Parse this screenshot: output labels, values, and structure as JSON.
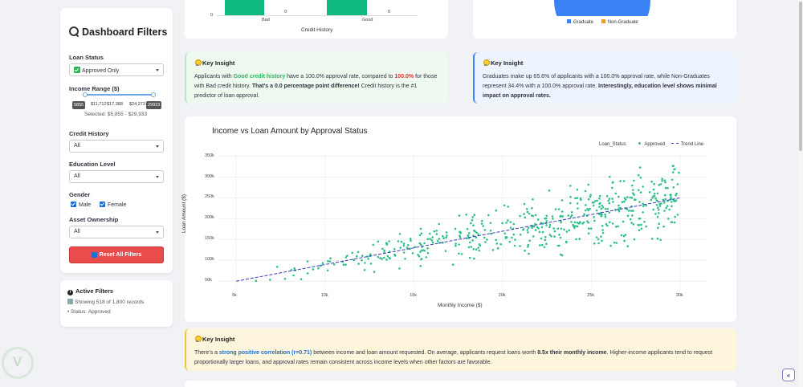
{
  "sidebar": {
    "title": "Dashboard Filters",
    "loan_status": {
      "label": "Loan Status",
      "value": "Approved Only"
    },
    "income_range": {
      "label": "Income Range ($)",
      "min_pill": "5855",
      "max_pill": "29933",
      "tick1": "$11,712",
      "tick2": "$17,388",
      "tick3": "$24,273",
      "selected": "Selected: $5,855 - $29,933"
    },
    "credit_history": {
      "label": "Credit History",
      "value": "All"
    },
    "education": {
      "label": "Education Level",
      "value": "All"
    },
    "gender": {
      "label": "Gender",
      "male": "Male",
      "female": "Female"
    },
    "asset": {
      "label": "Asset Ownership",
      "value": "All"
    },
    "reset_label": "Reset All Filters"
  },
  "active_filters": {
    "title": "Active Filters",
    "showing": "Showing 518 of 1,800 records",
    "status": "• Status: Approved"
  },
  "top_bar_chart": {
    "zero_label": "0",
    "bad_label": "Bad",
    "good_label": "Good",
    "bad_value": "0",
    "good_value": "0",
    "xlabel": "Credit History"
  },
  "pie_legend": {
    "graduate": "Graduate",
    "non_graduate": "Non-Graduate"
  },
  "insight_credit": {
    "title": "Key Insight",
    "p1": "Applicants with ",
    "good": "Good credit history",
    "p2": " have a 100.0% approval rate, compared to ",
    "rate": "100.0%",
    "p3": " for those with Bad credit history. ",
    "bold": "That's a 0.0 percentage point difference!",
    "p4": " Credit history is the #1 predictor of loan approval."
  },
  "insight_education": {
    "title": "Key Insight",
    "p1": "Graduates make up 65.6% of applicants with a 100.0% approval rate, while Non-Graduates represent 34.4% with a 100.0% approval rate. ",
    "bold": "Interestingly, education level shows minimal impact on approval rates."
  },
  "insight_correlation": {
    "title": "Key Insight",
    "p1": "There's a ",
    "strong": "strong positive correlation",
    "r": " (r=0.71)",
    "p2": " between income and loan amount requested. On average, applicants request loans worth ",
    "bold": "8.5x their monthly income",
    "p3": ". Higher-income applicants tend to request proportionally larger loans, and approval rates remain consistent across income levels when other factors are favorable."
  },
  "chart_data": {
    "type": "scatter",
    "title": "Income vs Loan Amount by Approval Status",
    "xlabel": "Monthly Income ($)",
    "ylabel": "Loan Amount ($)",
    "legend_title": "Loan_Status",
    "series": [
      {
        "name": "Approved",
        "color": "#2ec08a",
        "n": 518
      }
    ],
    "trend_name": "Trend Line",
    "trend": {
      "x": [
        5000,
        30000
      ],
      "y": [
        50000,
        250000
      ]
    },
    "xlim": [
      4000,
      31500
    ],
    "ylim": [
      35000,
      355000
    ],
    "x_ticks": [
      {
        "v": 5000,
        "label": "5k"
      },
      {
        "v": 10000,
        "label": "10k"
      },
      {
        "v": 15000,
        "label": "15k"
      },
      {
        "v": 20000,
        "label": "20k"
      },
      {
        "v": 25000,
        "label": "25k"
      },
      {
        "v": 30000,
        "label": "30k"
      }
    ],
    "y_ticks": [
      {
        "v": 50000,
        "label": "50k"
      },
      {
        "v": 100000,
        "label": "100k"
      },
      {
        "v": 150000,
        "label": "150k"
      },
      {
        "v": 200000,
        "label": "200k"
      },
      {
        "v": 250000,
        "label": "250k"
      },
      {
        "v": 300000,
        "label": "300k"
      },
      {
        "v": 350000,
        "label": "350k"
      }
    ],
    "legend_position": "top-right",
    "grid": true
  },
  "colors": {
    "graduate": "#3b82f6",
    "non_graduate": "#f59e0b",
    "bar_green": "#10b981",
    "trend": "#3a3ab8"
  }
}
